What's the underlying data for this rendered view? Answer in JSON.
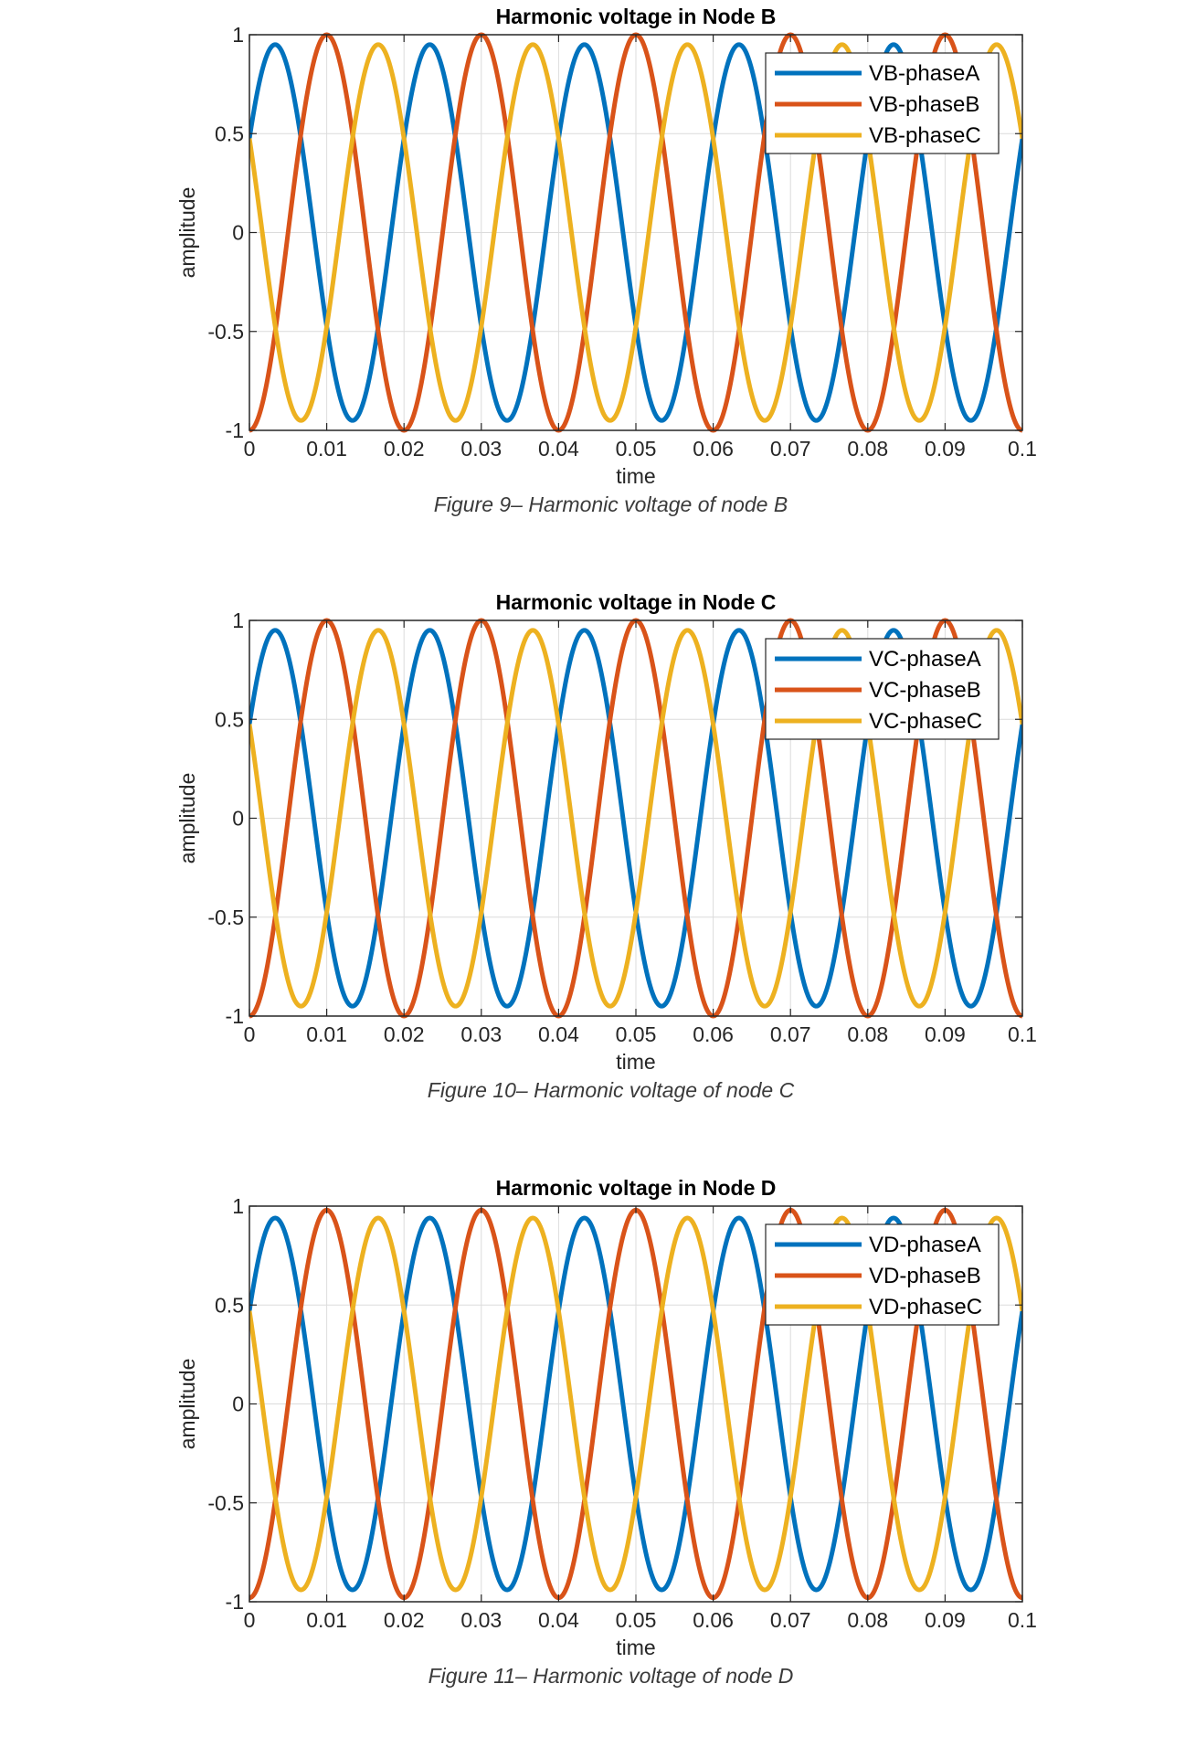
{
  "page": {
    "background": "#ffffff"
  },
  "colors": {
    "phaseA": "#0072BD",
    "phaseB": "#D95319",
    "phaseC": "#EDB120",
    "grid": "#dcdcdc",
    "axis": "#262626"
  },
  "figures": [
    {
      "title": "Harmonic voltage in Node B",
      "caption": "Figure 9– Harmonic voltage of node B",
      "legend": [
        "VB-phaseA",
        "VB-phaseB",
        "VB-phaseC"
      ]
    },
    {
      "title": "Harmonic voltage in Node C",
      "caption": "Figure 10– Harmonic voltage of node C",
      "legend": [
        "VC-phaseA",
        "VC-phaseB",
        "VC-phaseC"
      ]
    },
    {
      "title": "Harmonic voltage in Node D",
      "caption": "Figure 11– Harmonic voltage of node D",
      "legend": [
        "VD-phaseA",
        "VD-phaseB",
        "VD-phaseC"
      ]
    }
  ],
  "chart_data": [
    {
      "type": "line",
      "title": "Harmonic voltage in Node B",
      "xlabel": "time",
      "ylabel": "amplitude",
      "xlim": [
        0,
        0.1
      ],
      "ylim": [
        -1,
        1
      ],
      "xticks": [
        "0",
        "0.01",
        "0.02",
        "0.03",
        "0.04",
        "0.05",
        "0.06",
        "0.07",
        "0.08",
        "0.09",
        "0.1"
      ],
      "yticks": [
        "-1",
        "-0.5",
        "0",
        "0.5",
        "1"
      ],
      "grid": true,
      "legend_position": "northeast",
      "frequency_hz": 50,
      "series": [
        {
          "name": "VB-phaseA",
          "amplitude": 0.95,
          "phase_deg": 30,
          "color": "#0072BD"
        },
        {
          "name": "VB-phaseB",
          "amplitude": 1.0,
          "phase_deg": -90,
          "color": "#D95319"
        },
        {
          "name": "VB-phaseC",
          "amplitude": 0.95,
          "phase_deg": 150,
          "color": "#EDB120"
        }
      ]
    },
    {
      "type": "line",
      "title": "Harmonic voltage in Node C",
      "xlabel": "time",
      "ylabel": "amplitude",
      "xlim": [
        0,
        0.1
      ],
      "ylim": [
        -1,
        1
      ],
      "xticks": [
        "0",
        "0.01",
        "0.02",
        "0.03",
        "0.04",
        "0.05",
        "0.06",
        "0.07",
        "0.08",
        "0.09",
        "0.1"
      ],
      "yticks": [
        "-1",
        "-0.5",
        "0",
        "0.5",
        "1"
      ],
      "grid": true,
      "legend_position": "northeast",
      "frequency_hz": 50,
      "series": [
        {
          "name": "VC-phaseA",
          "amplitude": 0.95,
          "phase_deg": 30,
          "color": "#0072BD"
        },
        {
          "name": "VC-phaseB",
          "amplitude": 1.0,
          "phase_deg": -90,
          "color": "#D95319"
        },
        {
          "name": "VC-phaseC",
          "amplitude": 0.95,
          "phase_deg": 150,
          "color": "#EDB120"
        }
      ]
    },
    {
      "type": "line",
      "title": "Harmonic voltage in Node D",
      "xlabel": "time",
      "ylabel": "amplitude",
      "xlim": [
        0,
        0.1
      ],
      "ylim": [
        -1,
        1
      ],
      "xticks": [
        "0",
        "0.01",
        "0.02",
        "0.03",
        "0.04",
        "0.05",
        "0.06",
        "0.07",
        "0.08",
        "0.09",
        "0.1"
      ],
      "yticks": [
        "-1",
        "-0.5",
        "0",
        "0.5",
        "1"
      ],
      "grid": true,
      "legend_position": "northeast",
      "frequency_hz": 50,
      "series": [
        {
          "name": "VD-phaseA",
          "amplitude": 0.94,
          "phase_deg": 30,
          "color": "#0072BD"
        },
        {
          "name": "VD-phaseB",
          "amplitude": 0.98,
          "phase_deg": -90,
          "color": "#D95319"
        },
        {
          "name": "VD-phaseC",
          "amplitude": 0.94,
          "phase_deg": 150,
          "color": "#EDB120"
        }
      ]
    }
  ]
}
